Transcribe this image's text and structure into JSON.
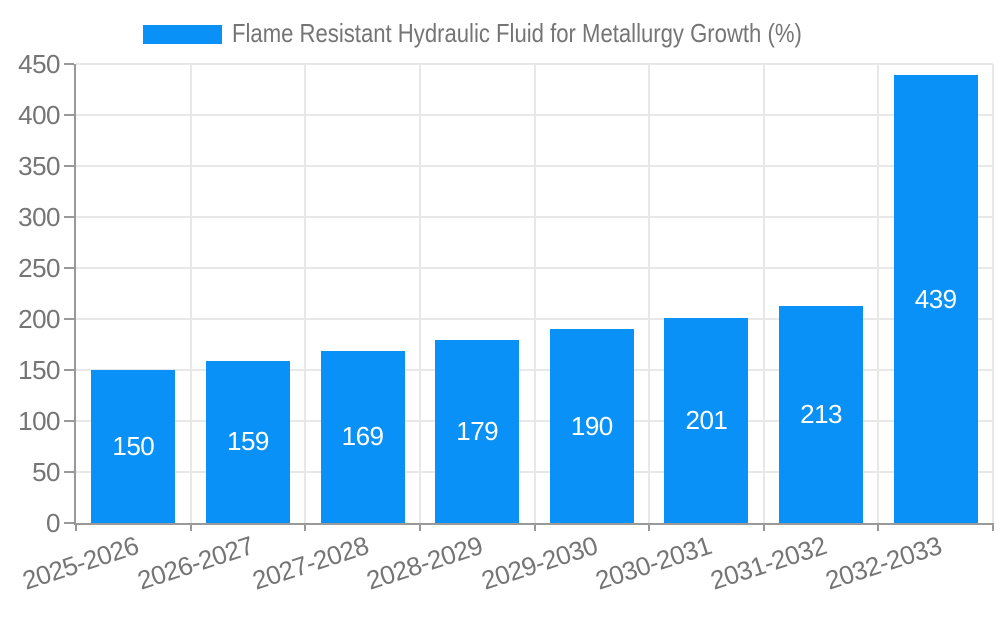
{
  "chart_data": {
    "type": "bar",
    "title": "Flame Resistant Hydraulic Fluid for Metallurgy Growth (%)",
    "legend": [
      "Flame Resistant Hydraulic Fluid for Metallurgy Growth (%)"
    ],
    "legend_position": "top",
    "categories": [
      "2025-2026",
      "2026-2027",
      "2027-2028",
      "2028-2029",
      "2029-2030",
      "2030-2031",
      "2031-2032",
      "2032-2033"
    ],
    "values": [
      150,
      159,
      169,
      179,
      190,
      201,
      213,
      439
    ],
    "value_labels_shown": true,
    "xlabel": "",
    "ylabel": "",
    "ylim": [
      0,
      450
    ],
    "yticks": [
      0,
      50,
      100,
      150,
      200,
      250,
      300,
      350,
      400,
      450
    ],
    "grid": true,
    "x_label_rotation_deg": -18,
    "colors": {
      "bar": "#0991f8",
      "bar_value_label": "#ffffff",
      "grid_line": "#e8e8e8",
      "axis_line": "#999999",
      "tick_text": "#757575",
      "title_text": "#757575",
      "background": "#ffffff"
    }
  }
}
